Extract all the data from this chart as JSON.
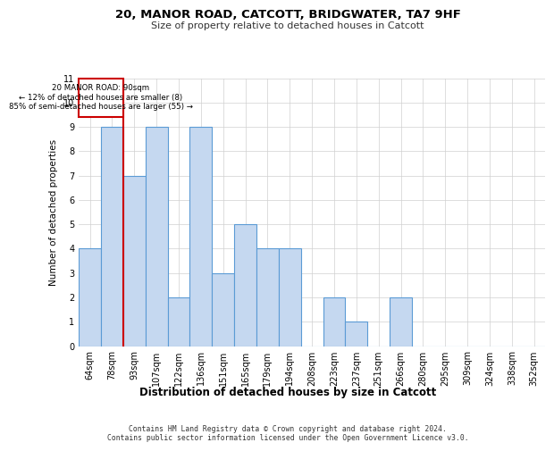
{
  "title1": "20, MANOR ROAD, CATCOTT, BRIDGWATER, TA7 9HF",
  "title2": "Size of property relative to detached houses in Catcott",
  "xlabel": "Distribution of detached houses by size in Catcott",
  "ylabel": "Number of detached properties",
  "categories": [
    "64sqm",
    "78sqm",
    "93sqm",
    "107sqm",
    "122sqm",
    "136sqm",
    "151sqm",
    "165sqm",
    "179sqm",
    "194sqm",
    "208sqm",
    "223sqm",
    "237sqm",
    "251sqm",
    "266sqm",
    "280sqm",
    "295sqm",
    "309sqm",
    "324sqm",
    "338sqm",
    "352sqm"
  ],
  "values": [
    4,
    9,
    7,
    9,
    2,
    9,
    3,
    5,
    4,
    4,
    0,
    2,
    1,
    0,
    2,
    0,
    0,
    0,
    0,
    0,
    0
  ],
  "bar_color": "#c5d8f0",
  "bar_edge_color": "#5b9bd5",
  "highlight_line_color": "#cc0000",
  "annotation_text": "20 MANOR ROAD: 90sqm\n← 12% of detached houses are smaller (8)\n85% of semi-detached houses are larger (55) →",
  "annotation_box_color": "#cc0000",
  "grid_color": "#d0d0d0",
  "ylim": [
    0,
    11
  ],
  "yticks": [
    0,
    1,
    2,
    3,
    4,
    5,
    6,
    7,
    8,
    9,
    10,
    11
  ],
  "footer": "Contains HM Land Registry data © Crown copyright and database right 2024.\nContains public sector information licensed under the Open Government Licence v3.0."
}
